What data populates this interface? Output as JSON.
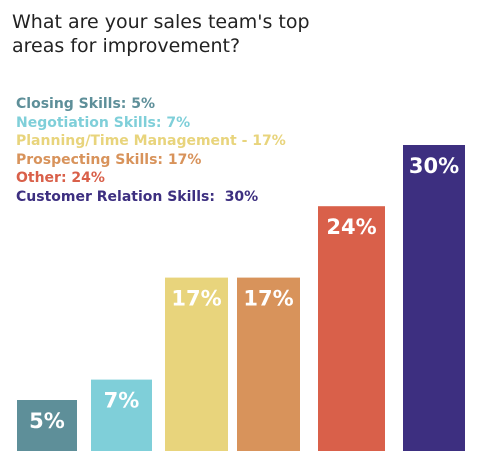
{
  "chart_data": {
    "type": "bar",
    "title": "What are your sales team's top areas for improvement?",
    "categories": [
      "Closing Skills: 5%",
      "Negotiation Skills: 7%",
      "Planning/Time Management - 17%",
      "Prospecting Skills: 17%",
      "Other: 24%",
      "Customer Relation Skills:  30%"
    ],
    "values": [
      5,
      7,
      17,
      17,
      24,
      30
    ],
    "value_labels": [
      "5%",
      "7%",
      "17%",
      "17%",
      "24%",
      "30%"
    ],
    "colors": [
      "#5e8f99",
      "#7fcfd9",
      "#e8d47c",
      "#d8935b",
      "#d9604a",
      "#3d2f80"
    ]
  }
}
